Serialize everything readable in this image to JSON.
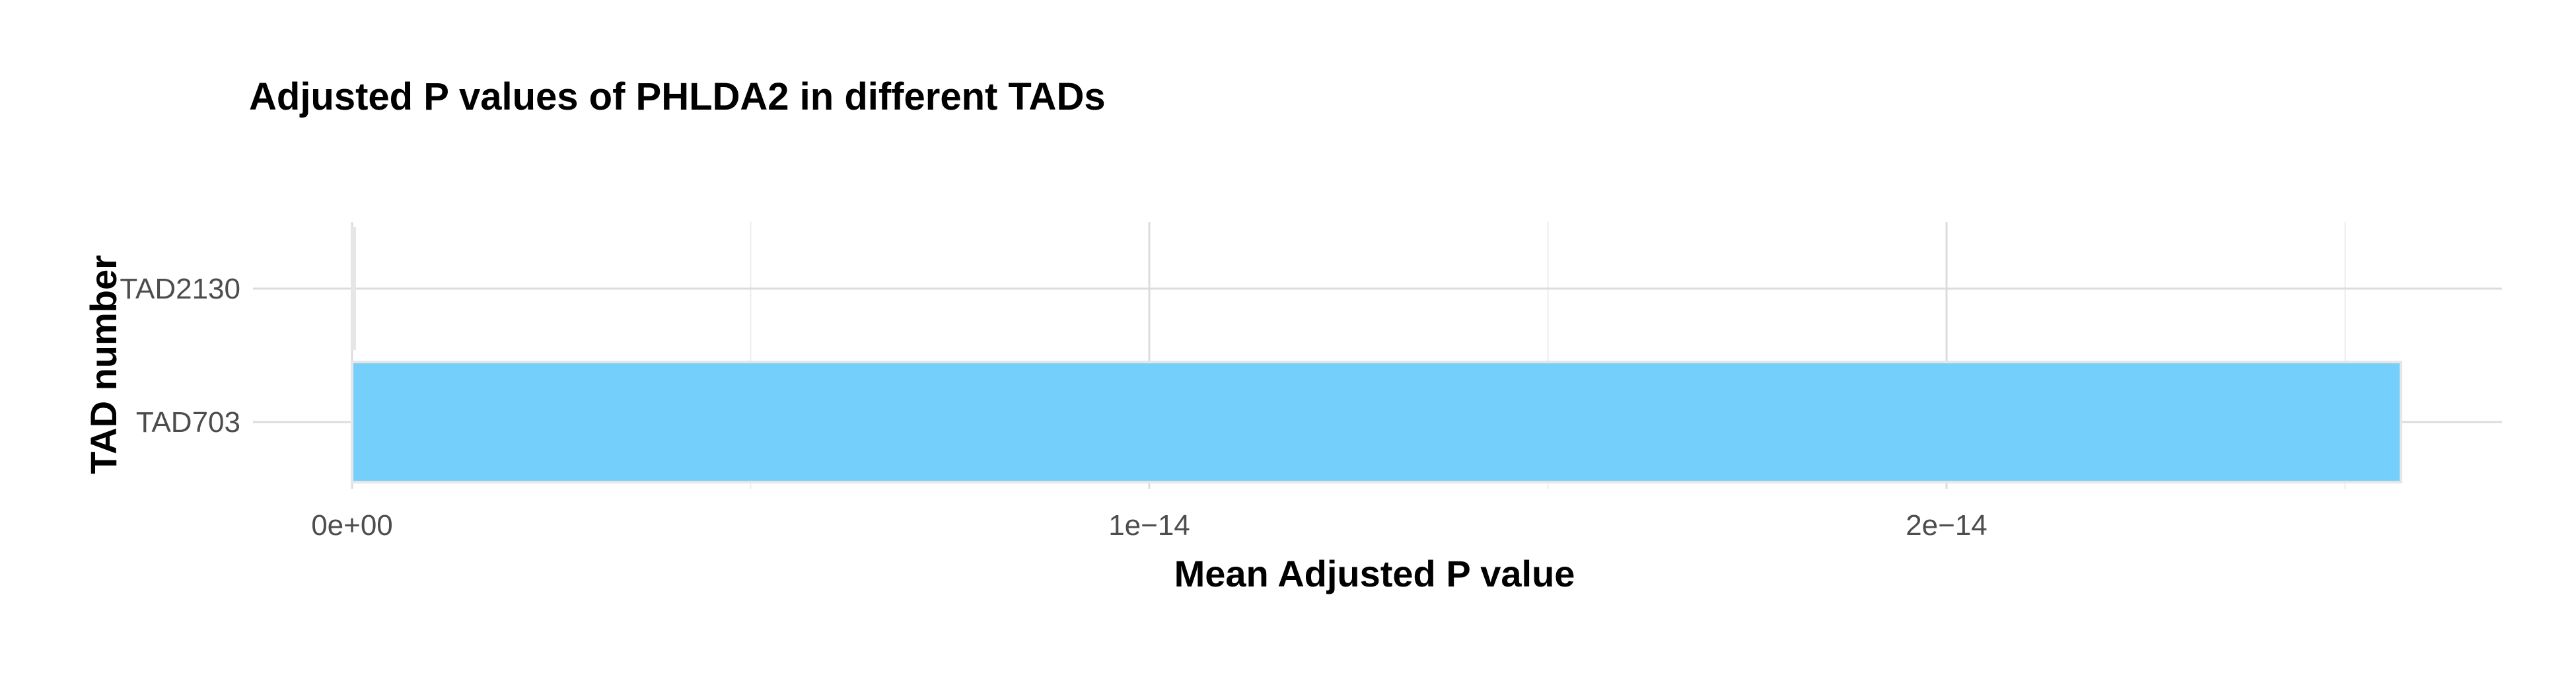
{
  "chart_data": {
    "type": "bar",
    "orientation": "horizontal",
    "title": "Adjusted P values of PHLDA2 in different TADs",
    "xlabel": "Mean Adjusted P value",
    "ylabel": "TAD number",
    "categories": [
      "TAD2130",
      "TAD703"
    ],
    "values": [
      0,
      2.57e-14
    ],
    "xlim": [
      0,
      2.7e-14
    ],
    "x_ticks": [
      {
        "value": 0,
        "label": "0e+00"
      },
      {
        "value": 1e-14,
        "label": "1e−14"
      },
      {
        "value": 2e-14,
        "label": "2e−14"
      }
    ],
    "x_minor_ticks": [
      5e-15,
      1.5e-14,
      2.5e-14
    ],
    "grid": true,
    "legend": "none",
    "colors": {
      "bar_fill": "#75cffb",
      "bar_outline": "#e6e6e6",
      "grid_major": "#dcdcdc",
      "grid_minor": "#ececec"
    }
  }
}
